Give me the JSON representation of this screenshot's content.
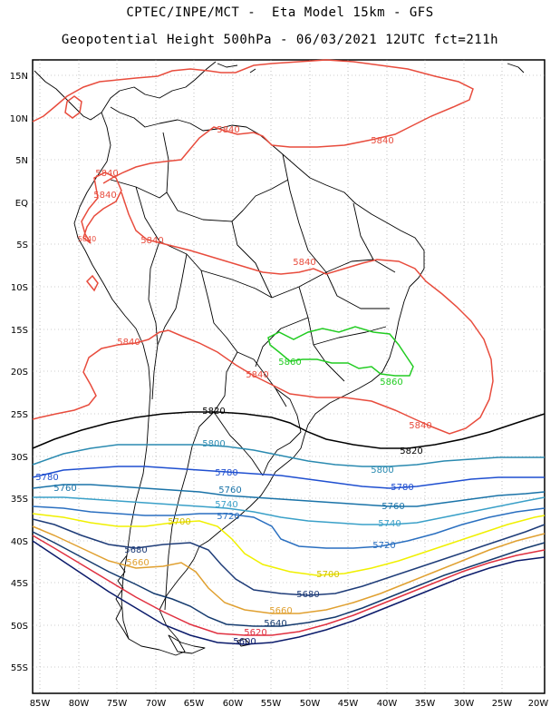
{
  "title_line1": "CPTEC/INPE/MCT -  Eta Model 15km - GFS",
  "title_line2": "Geopotential Height 500hPa - 06/03/2021 12UTC fct=211h",
  "lat_labels": [
    "15N",
    "10N",
    "5N",
    "EQ",
    "5S",
    "10S",
    "15S",
    "20S",
    "25S",
    "30S",
    "35S",
    "40S",
    "45S",
    "50S",
    "55S"
  ],
  "lon_labels": [
    "85W",
    "80W",
    "75W",
    "70W",
    "65W",
    "60W",
    "55W",
    "50W",
    "45W",
    "40W",
    "35W",
    "30W",
    "25W",
    "20W"
  ],
  "contour_labels": {
    "l5840a": "5840",
    "l5840b": "5840",
    "l5840c": "5840",
    "l5840d": "5840",
    "l5840e": "5840",
    "l5840f": "5840",
    "l5840g": "5840",
    "l5840h": "5840",
    "l5840i": "5840",
    "l5840j": "5840",
    "l5860a": "5860",
    "l5860b": "5860",
    "l5820a": "5820",
    "l5820b": "5820",
    "l5800a": "5800",
    "l5800b": "5800",
    "l5780a": "5780",
    "l5780b": "5780",
    "l5780c": "5780",
    "l5760a": "5760",
    "l5760b": "5760",
    "l5760c": "5760",
    "l5740a": "5740",
    "l5740b": "5740",
    "l5720a": "5720",
    "l5720b": "5720",
    "l5700a": "5700",
    "l5700b": "5700",
    "l5680a": "5680",
    "l5680b": "5680",
    "l5660a": "5660",
    "l5660b": "5660",
    "l5640": "5640",
    "l5620": "5620",
    "l5600": "5600"
  },
  "colors": {
    "c5860": "#22cc22",
    "c5840": "#e84c3d",
    "c5820": "#000000",
    "c5800": "#2a8ab0",
    "c5780": "#1f4fd0",
    "c5760": "#1a73a8",
    "c5740": "#3aa0c8",
    "c5720": "#2a6fc0",
    "c5700": "#f0f000",
    "c5680": "#1e3c78",
    "c5660": "#e0a030",
    "c5640": "#143a6e",
    "c5620": "#e03040",
    "c5600": "#0a1a6a"
  }
}
